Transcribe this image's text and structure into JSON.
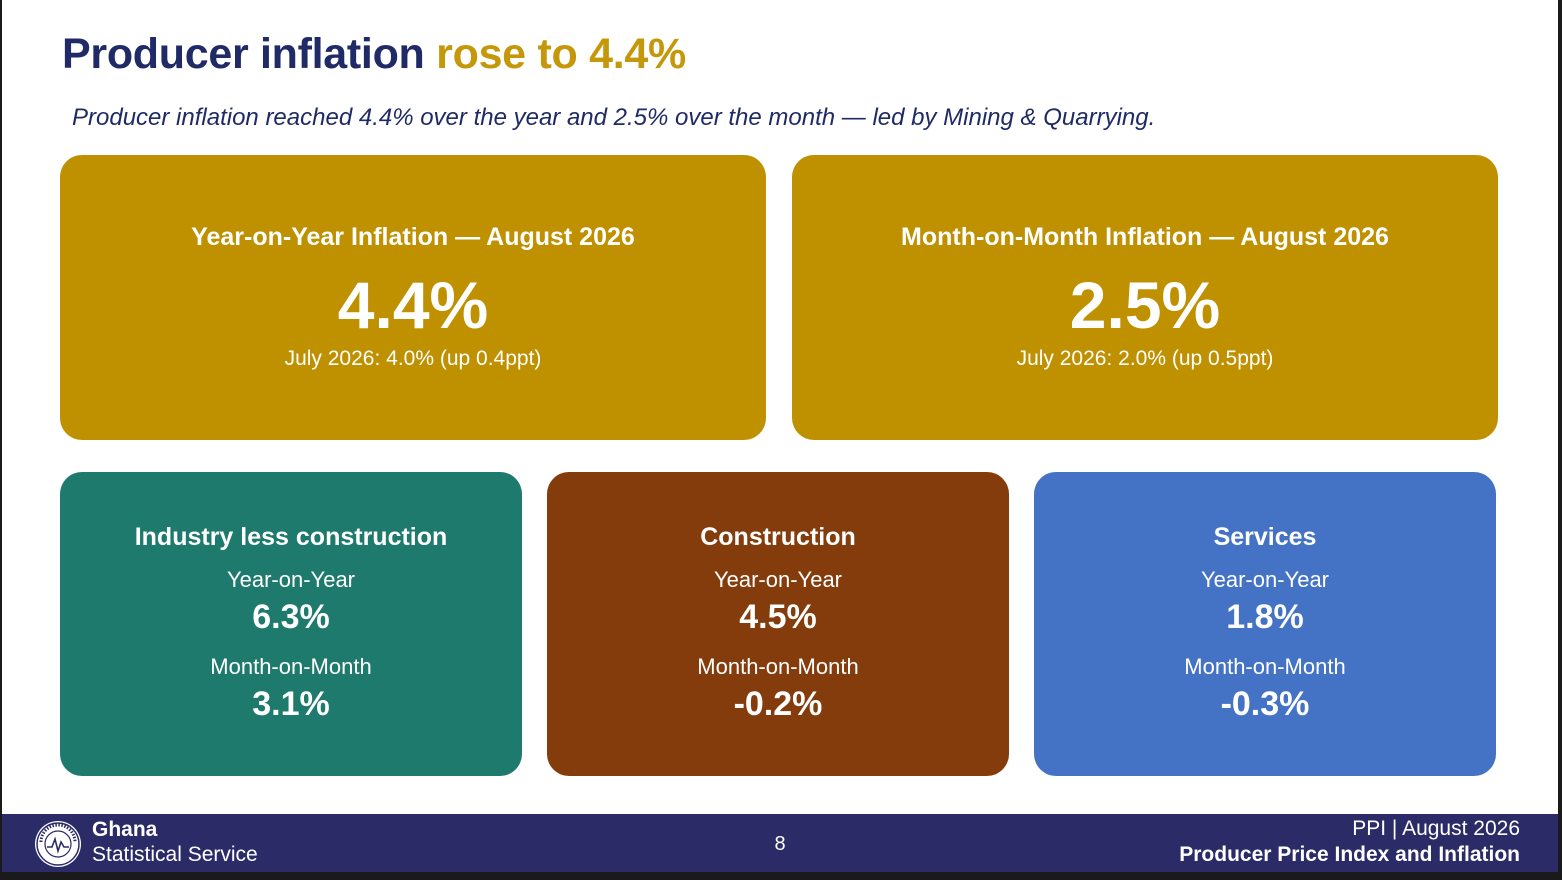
{
  "title": {
    "main": "Producer inflation",
    "accent": "rose to 4.4%"
  },
  "subtitle": "Producer inflation reached 4.4% over the year and 2.5% over the month — led by Mining & Quarrying.",
  "headline_cards": [
    {
      "label": "Year-on-Year Inflation — August 2026",
      "value": "4.4%",
      "note": "July 2026: 4.0%  (up 0.4ppt)",
      "color": "#bf9000"
    },
    {
      "label": "Month-on-Month Inflation — August 2026",
      "value": "2.5%",
      "note": "July 2026: 2.0%  (up 0.5ppt)",
      "color": "#bf9000"
    }
  ],
  "sector_cards": [
    {
      "name": "Industry less construction",
      "yoy_label": "Year-on-Year",
      "yoy": "6.3%",
      "mom_label": "Month-on-Month",
      "mom": "3.1%",
      "color": "#1f7a6e"
    },
    {
      "name": "Construction",
      "yoy_label": "Year-on-Year",
      "yoy": "4.5%",
      "mom_label": "Month-on-Month",
      "mom": "-0.2%",
      "color": "#843c0c"
    },
    {
      "name": "Services",
      "yoy_label": "Year-on-Year",
      "yoy": "1.8%",
      "mom_label": "Month-on-Month",
      "mom": "-0.3%",
      "color": "#4472c4"
    }
  ],
  "footer": {
    "org_line1": "Ghana",
    "org_line2": "Statistical Service",
    "seal_text": "STATISTICAL SERVICE GHANA",
    "seal_icon": "ghana-statistical-service-seal",
    "page_number": "8",
    "right_line1": "PPI | August 2026",
    "right_line2": "Producer Price Index and Inflation"
  },
  "colors": {
    "navy": "#1f2a66",
    "gold_accent": "#c4980a",
    "footer_bg": "#2b2b68"
  }
}
